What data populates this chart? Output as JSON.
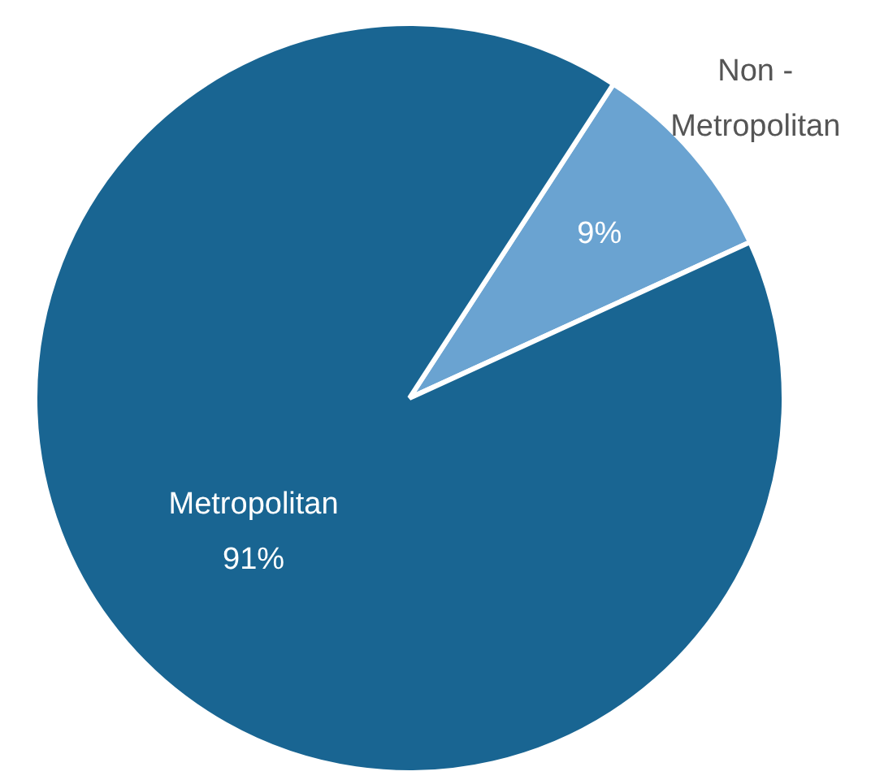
{
  "chart_data": {
    "type": "pie",
    "categories": [
      "Non - Metropolitan",
      "Metropolitan"
    ],
    "values": [
      9,
      91
    ],
    "colors": [
      "#6aa3d1",
      "#196592"
    ],
    "value_labels": [
      "9%",
      "91%"
    ],
    "legend": false
  }
}
